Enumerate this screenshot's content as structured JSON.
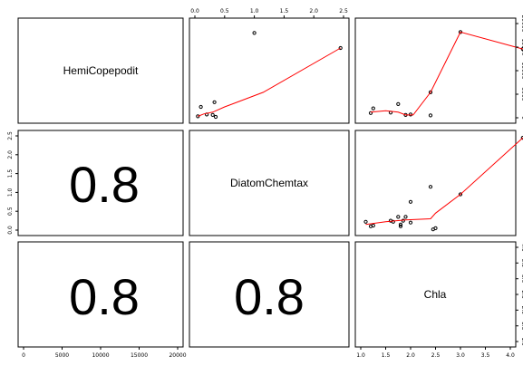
{
  "chart_data": {
    "type": "scatter",
    "variables": [
      "HemiCopepodit",
      "DiatomChemtax",
      "Chla"
    ],
    "correlation_labels": {
      "diatom_vs_hemi": "0.8",
      "chla_vs_hemi": "0.8",
      "chla_vs_diatom": "0.8"
    },
    "axes": {
      "hemi_x": {
        "range": [
          0,
          20000
        ],
        "ticks": [
          "0",
          "5000",
          "10000",
          "15000",
          "20000"
        ]
      },
      "diatom_x": {
        "range": [
          0,
          2.5
        ],
        "ticks": [
          "0.0",
          "0.5",
          "1.0",
          "1.5",
          "2.0",
          "2.5"
        ]
      },
      "diatom_y": {
        "range": [
          0,
          2.5
        ],
        "ticks": [
          "0.0",
          "0.5",
          "1.0",
          "1.5",
          "2.0",
          "2.5"
        ]
      },
      "chla_x": {
        "range": [
          1.0,
          4.0
        ],
        "ticks": [
          "1.0",
          "1.5",
          "2.0",
          "2.5",
          "3.0",
          "3.5",
          "4.0"
        ]
      },
      "hemi_y": {
        "range": [
          0,
          20000
        ],
        "ticks": [
          "0",
          "5000",
          "10000",
          "15000",
          "20000"
        ]
      },
      "chla_y": {
        "range": [
          1.0,
          4.0
        ],
        "ticks": [
          "1.0",
          "1.5",
          "2.0",
          "2.5",
          "3.0",
          "3.5",
          "4.0"
        ]
      }
    },
    "panels": [
      {
        "x_var": "DiatomChemtax",
        "y_var": "HemiCopepodit",
        "points": [
          [
            0.05,
            300
          ],
          [
            0.1,
            2300
          ],
          [
            0.2,
            700
          ],
          [
            0.3,
            600
          ],
          [
            0.33,
            3300
          ],
          [
            0.35,
            200
          ],
          [
            1.0,
            18000
          ],
          [
            2.45,
            14800
          ]
        ],
        "smooth": [
          [
            0.05,
            300
          ],
          [
            0.15,
            800
          ],
          [
            0.3,
            1200
          ],
          [
            0.5,
            2300
          ],
          [
            1.15,
            5400
          ],
          [
            2.45,
            14800
          ]
        ]
      },
      {
        "x_var": "Chla",
        "y_var": "HemiCopepodit",
        "points": [
          [
            1.2,
            1000
          ],
          [
            1.25,
            2000
          ],
          [
            1.6,
            1100
          ],
          [
            1.75,
            2900
          ],
          [
            1.9,
            600
          ],
          [
            2.0,
            700
          ],
          [
            2.4,
            5400
          ],
          [
            2.4,
            500
          ],
          [
            3.0,
            18200
          ],
          [
            4.25,
            14600
          ]
        ],
        "smooth": [
          [
            1.2,
            1200
          ],
          [
            1.5,
            1500
          ],
          [
            1.75,
            1200
          ],
          [
            1.9,
            600
          ],
          [
            2.05,
            600
          ],
          [
            2.4,
            5400
          ],
          [
            3.0,
            18200
          ],
          [
            4.25,
            14600
          ]
        ]
      },
      {
        "x_var": "Chla",
        "y_var": "DiatomChemtax",
        "points": [
          [
            1.1,
            0.22
          ],
          [
            1.2,
            0.1
          ],
          [
            1.25,
            0.12
          ],
          [
            1.6,
            0.25
          ],
          [
            1.65,
            0.22
          ],
          [
            1.75,
            0.35
          ],
          [
            1.8,
            0.15
          ],
          [
            1.8,
            0.1
          ],
          [
            1.85,
            0.25
          ],
          [
            1.9,
            0.35
          ],
          [
            2.0,
            0.75
          ],
          [
            2.0,
            0.2
          ],
          [
            2.4,
            1.15
          ],
          [
            2.45,
            0.02
          ],
          [
            2.5,
            0.05
          ],
          [
            3.0,
            0.95
          ],
          [
            4.25,
            2.45
          ]
        ],
        "smooth": [
          [
            1.1,
            0.15
          ],
          [
            1.5,
            0.22
          ],
          [
            1.9,
            0.27
          ],
          [
            2.4,
            0.3
          ],
          [
            2.5,
            0.45
          ],
          [
            3.0,
            0.95
          ],
          [
            4.25,
            2.45
          ]
        ]
      }
    ]
  }
}
